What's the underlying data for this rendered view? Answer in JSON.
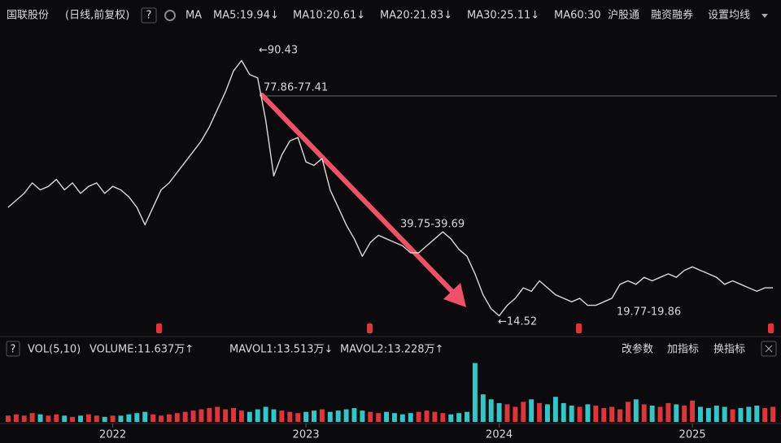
{
  "chart_data": {
    "type": "line",
    "title": "国联股份",
    "subtitle": "(日线,前复权)",
    "help": "?",
    "ma_title": "MA",
    "ma_labels": [
      {
        "label": "MA5:19.94↓",
        "color": "#ffffff"
      },
      {
        "label": "MA10:20.61↓",
        "color": "#f5e13c"
      },
      {
        "label": "MA20:21.83↓",
        "color": "#e040e0"
      },
      {
        "label": "MA30:25.11↓",
        "color": "#3ad04a"
      },
      {
        "label": "MA60:30",
        "color": "#ffffff"
      }
    ],
    "toolbar": [
      "沪股通",
      "融资融券",
      "设置均线"
    ],
    "categories": [
      null,
      null,
      null,
      null,
      null,
      null,
      null,
      null,
      null,
      null,
      null,
      null,
      null,
      "2022",
      null,
      null,
      null,
      null,
      null,
      null,
      null,
      null,
      null,
      null,
      null,
      null,
      null,
      null,
      null,
      null,
      null,
      null,
      null,
      null,
      null,
      null,
      null,
      "2023",
      null,
      null,
      null,
      null,
      null,
      null,
      null,
      null,
      null,
      null,
      null,
      null,
      null,
      null,
      null,
      null,
      null,
      null,
      null,
      null,
      null,
      null,
      null,
      "2024",
      null,
      null,
      null,
      null,
      null,
      null,
      null,
      null,
      null,
      null,
      null,
      null,
      null,
      null,
      null,
      null,
      null,
      null,
      null,
      null,
      null,
      null,
      null,
      "2025",
      null,
      null,
      null,
      null,
      null,
      null,
      null,
      null,
      null,
      null
    ],
    "series": [
      {
        "color": "#d9d9d9",
        "values": [
          47,
          49,
          51,
          54,
          52,
          53,
          55,
          52,
          54,
          51,
          53,
          54,
          51,
          53,
          52,
          50,
          47,
          42,
          47,
          52,
          54,
          57,
          60,
          63,
          66,
          70,
          75,
          80,
          86,
          89,
          85,
          84,
          72,
          56,
          62,
          66,
          67,
          60,
          59,
          61,
          52,
          47,
          42,
          38,
          33,
          37,
          39,
          38,
          37,
          36,
          34,
          34,
          36,
          38,
          40,
          38,
          35,
          33,
          28,
          22,
          18,
          16,
          19,
          21,
          24,
          23,
          26,
          24,
          22,
          21,
          20,
          21,
          19,
          19,
          20,
          21,
          25,
          26,
          25,
          27,
          26,
          27,
          28,
          27,
          29,
          30,
          29,
          28,
          27,
          25,
          26,
          25,
          24,
          23,
          24,
          24
        ]
      }
    ],
    "ylim": [
      11,
      97
    ],
    "annotations": [
      "←90.43",
      "77.86-77.41",
      "39.75-39.69",
      "←14.52",
      "19.77-19.86"
    ],
    "volume": {
      "title": "VOL(5,10)",
      "labels": [
        {
          "label": "VOLUME:11.637万↑",
          "color": "#ffffff"
        },
        {
          "label": "MAVOL1:13.513万↓",
          "color": "#f5e13c"
        },
        {
          "label": "MAVOL2:13.228万↑",
          "color": "#e040e0"
        }
      ],
      "buttons": [
        "改参数",
        "加指标",
        "换指标"
      ],
      "vlim": [
        0,
        50
      ],
      "up_color": "#e0333a",
      "down_color": "#2fc7c7",
      "values": [
        5,
        6,
        5,
        7,
        6,
        5,
        6,
        5,
        4,
        5,
        6,
        5,
        4,
        5,
        5,
        6,
        7,
        8,
        6,
        5,
        6,
        7,
        8,
        9,
        10,
        11,
        12,
        10,
        11,
        9,
        8,
        10,
        12,
        10,
        9,
        8,
        7,
        8,
        9,
        10,
        8,
        9,
        10,
        11,
        9,
        8,
        7,
        8,
        7,
        6,
        7,
        8,
        9,
        8,
        7,
        6,
        7,
        8,
        47,
        22,
        18,
        15,
        14,
        12,
        16,
        18,
        15,
        14,
        20,
        15,
        13,
        12,
        14,
        13,
        11,
        12,
        10,
        16,
        18,
        14,
        13,
        12,
        15,
        14,
        13,
        17,
        12,
        11,
        13,
        12,
        10,
        11,
        12,
        13,
        11,
        12
      ]
    }
  }
}
